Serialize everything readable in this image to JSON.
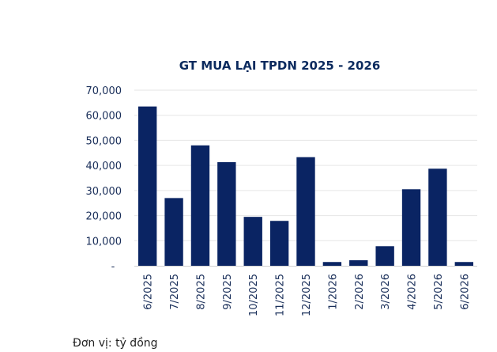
{
  "chart_data": {
    "type": "bar",
    "title": "GT MUA LẠI TPDN 2025 - 2026",
    "xlabel": "",
    "ylabel": "",
    "categories": [
      "6/2025",
      "7/2025",
      "8/2025",
      "9/2025",
      "10/2025",
      "11/2025",
      "12/2025",
      "1/2026",
      "2/2026",
      "3/2026",
      "4/2026",
      "5/2026",
      "6/2026"
    ],
    "values": [
      63500,
      27000,
      48000,
      41300,
      19500,
      17900,
      43300,
      1500,
      2200,
      7800,
      30500,
      38700,
      1500
    ],
    "ylim": [
      0,
      70000
    ],
    "yticks": [
      0,
      10000,
      20000,
      30000,
      40000,
      50000,
      60000,
      70000
    ],
    "ytick_labels": [
      "-",
      "10,000",
      "20,000",
      "30,000",
      "40,000",
      "50,000",
      "60,000",
      "70,000"
    ],
    "grid": true,
    "legend": "none",
    "bar_color": "#0a2463",
    "grid_color": "#e6e6e6"
  },
  "footer": {
    "unit_note": "Đơn vị: tỷ đồng"
  }
}
